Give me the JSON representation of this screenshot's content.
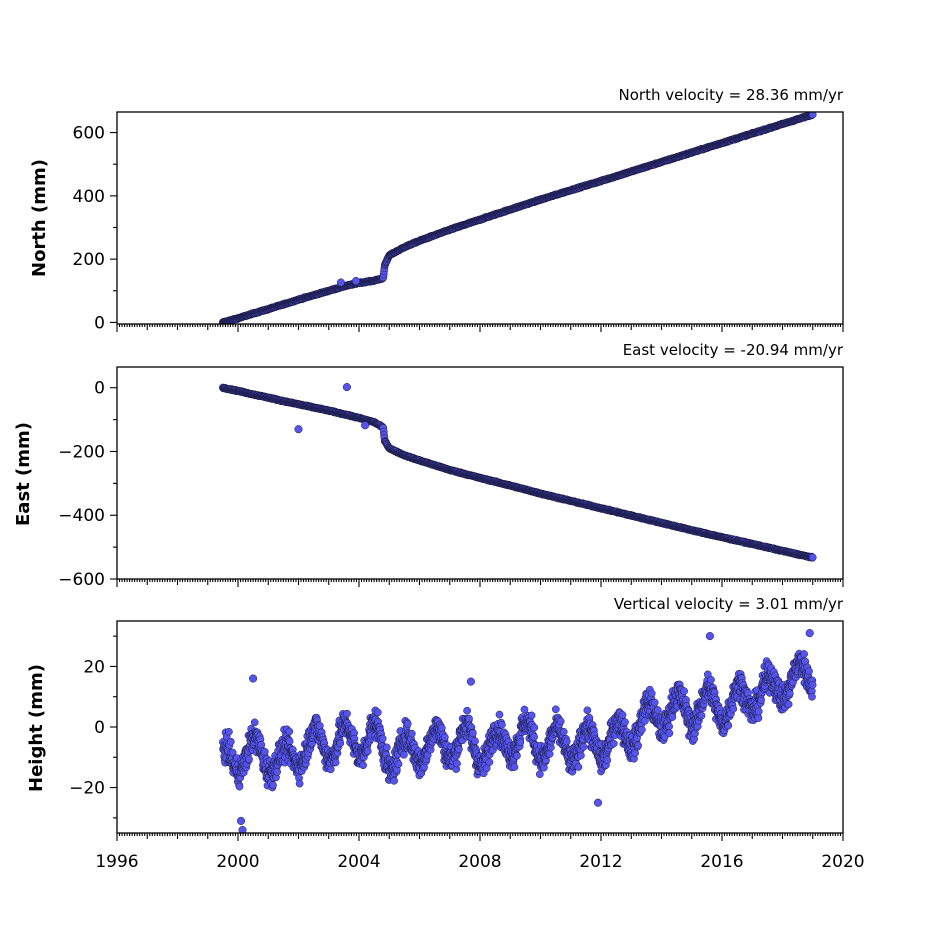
{
  "chart_data": [
    {
      "type": "scatter",
      "title": "North velocity = 28.36 mm/yr",
      "ylabel": "North (mm)",
      "xlabel": "",
      "xlim": [
        1996,
        2020
      ],
      "ylim": [
        -5,
        665
      ],
      "yticks": [
        0,
        200,
        400,
        600
      ],
      "ytick_labels": [
        "0",
        "200",
        "400",
        "600"
      ],
      "xtick_labels_shown": false,
      "marker_color": "#5555ee",
      "series": [
        {
          "x": [
            1999.5,
            2000.0,
            2000.5,
            2001.0,
            2001.5,
            2002.0,
            2002.5,
            2003.0,
            2003.5,
            2004.0,
            2004.5,
            2004.8,
            2004.85,
            2005.0,
            2005.5,
            2006.0,
            2007.0,
            2008.0,
            2009.0,
            2010.0,
            2011.0,
            2012.0,
            2013.0,
            2014.0,
            2015.0,
            2016.0,
            2017.0,
            2018.0,
            2019.0
          ],
          "y": [
            0,
            13,
            28,
            42,
            57,
            72,
            86,
            100,
            114,
            125,
            132,
            140,
            180,
            212,
            238,
            258,
            293,
            325,
            357,
            388,
            418,
            447,
            477,
            507,
            537,
            567,
            597,
            627,
            657
          ]
        },
        {
          "name": "",
          "x": [
            2003.4,
            2003.9
          ],
          "y": [
            126,
            131
          ]
        }
      ]
    },
    {
      "type": "scatter",
      "title": "East velocity = -20.94 mm/yr",
      "ylabel": "East (mm)",
      "xlabel": "",
      "xlim": [
        1996,
        2020
      ],
      "ylim": [
        -600,
        65
      ],
      "yticks": [
        0,
        -200,
        -400,
        -600
      ],
      "ytick_labels": [
        "0",
        "−200",
        "−400",
        "−600"
      ],
      "xtick_labels_shown": false,
      "marker_color": "#5555ee",
      "series": [
        {
          "x": [
            1999.5,
            2000.0,
            2000.5,
            2001.0,
            2001.5,
            2002.0,
            2002.5,
            2003.0,
            2003.5,
            2004.0,
            2004.5,
            2004.8,
            2004.85,
            2005.0,
            2005.5,
            2006.0,
            2007.0,
            2008.0,
            2009.0,
            2010.0,
            2011.0,
            2012.0,
            2013.0,
            2014.0,
            2015.0,
            2016.0,
            2017.0,
            2018.0,
            2019.0
          ],
          "y": [
            0,
            -10,
            -21,
            -31,
            -42,
            -52,
            -62,
            -72,
            -83,
            -95,
            -108,
            -125,
            -165,
            -190,
            -212,
            -228,
            -258,
            -283,
            -307,
            -332,
            -355,
            -378,
            -401,
            -424,
            -447,
            -469,
            -490,
            -512,
            -533
          ]
        },
        {
          "name": "",
          "x": [
            2002.0,
            2003.6,
            2004.2
          ],
          "y": [
            -130,
            2,
            -118
          ]
        }
      ]
    },
    {
      "type": "scatter",
      "title": "Vertical velocity = 3.01 mm/yr",
      "ylabel": "Height (mm)",
      "xlabel": "",
      "xlim": [
        1996,
        2020
      ],
      "ylim": [
        -35,
        35
      ],
      "yticks": [
        20,
        0,
        -20
      ],
      "ytick_labels": [
        "20",
        "0",
        "−20"
      ],
      "xticks": [
        1996,
        2000,
        2004,
        2008,
        2012,
        2016,
        2020
      ],
      "xtick_labels": [
        "1996",
        "2000",
        "2004",
        "2008",
        "2012",
        "2016",
        "2020"
      ],
      "marker_color": "#5555ee",
      "trend_mm_per_yr": 3.01,
      "series": [
        {
          "x": [
            1999.5,
            2000.0,
            2000.5,
            2001.0,
            2001.5,
            2002.0,
            2002.5,
            2003.0,
            2003.5,
            2004.0,
            2004.5,
            2005.0,
            2005.5,
            2006.0,
            2006.5,
            2007.0,
            2007.5,
            2008.0,
            2008.5,
            2009.0,
            2009.5,
            2010.0,
            2010.5,
            2011.0,
            2011.5,
            2012.0,
            2012.5,
            2013.0,
            2013.5,
            2014.0,
            2014.5,
            2015.0,
            2015.5,
            2016.0,
            2016.5,
            2017.0,
            2017.5,
            2018.0,
            2018.5,
            2019.0
          ],
          "y": [
            -12,
            -10,
            -8,
            -10,
            -12,
            -8,
            -5,
            -6,
            -4,
            -5,
            -3,
            -10,
            -8,
            -7,
            -5,
            -6,
            -4,
            -8,
            -6,
            -4,
            -3,
            -6,
            -5,
            -7,
            -5,
            -6,
            -3,
            -2,
            3,
            4,
            6,
            5,
            8,
            6,
            9,
            10,
            12,
            14,
            16,
            18
          ]
        },
        {
          "name": "",
          "x": [
            2000.5,
            2000.1,
            2000.15,
            2011.9,
            2015.6,
            2018.9,
            2007.7
          ],
          "y": [
            16,
            -31,
            -34,
            -25,
            30,
            31,
            15
          ]
        }
      ]
    }
  ]
}
